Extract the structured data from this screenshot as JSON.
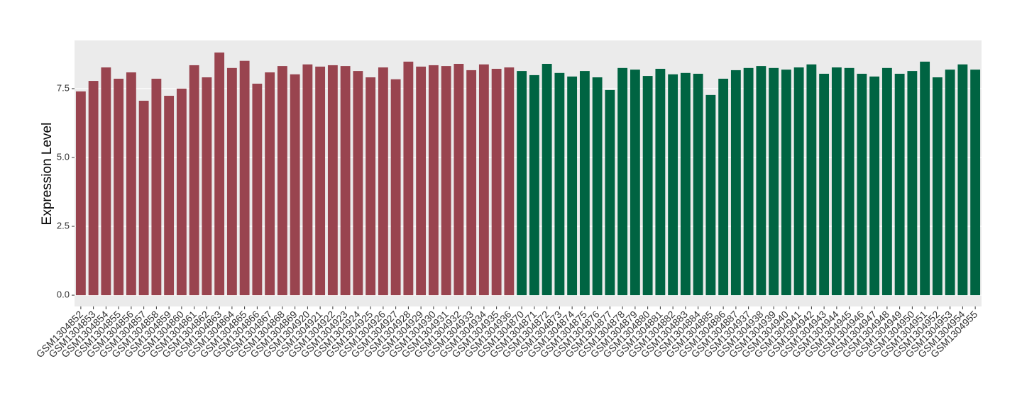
{
  "chart_data": {
    "type": "bar",
    "y_label": "Expression Level",
    "categories": [
      "GSM1304852",
      "GSM1304853",
      "GSM1304854",
      "GSM1304855",
      "GSM1304856",
      "GSM1304857",
      "GSM1304858",
      "GSM1304859",
      "GSM1304860",
      "GSM1304861",
      "GSM1304862",
      "GSM1304863",
      "GSM1304864",
      "GSM1304865",
      "GSM1304866",
      "GSM1304867",
      "GSM1304868",
      "GSM1304869",
      "GSM1304920",
      "GSM1304921",
      "GSM1304922",
      "GSM1304923",
      "GSM1304924",
      "GSM1304925",
      "GSM1304926",
      "GSM1304927",
      "GSM1304928",
      "GSM1304929",
      "GSM1304930",
      "GSM1304931",
      "GSM1304932",
      "GSM1304933",
      "GSM1304934",
      "GSM1304935",
      "GSM1304936",
      "GSM1304870",
      "GSM1304871",
      "GSM1304872",
      "GSM1304873",
      "GSM1304874",
      "GSM1304875",
      "GSM1304876",
      "GSM1304877",
      "GSM1304878",
      "GSM1304879",
      "GSM1304880",
      "GSM1304881",
      "GSM1304882",
      "GSM1304883",
      "GSM1304884",
      "GSM1304885",
      "GSM1304886",
      "GSM1304887",
      "GSM1304937",
      "GSM1304938",
      "GSM1304939",
      "GSM1304940",
      "GSM1304941",
      "GSM1304942",
      "GSM1304943",
      "GSM1304944",
      "GSM1304945",
      "GSM1304946",
      "GSM1304947",
      "GSM1304948",
      "GSM1304949",
      "GSM1304950",
      "GSM1304951",
      "GSM1304952",
      "GSM1304953",
      "GSM1304954",
      "GSM1304955"
    ],
    "series": [
      {
        "color": "#99444f",
        "values": [
          7.4,
          7.78,
          8.27,
          7.86,
          8.09,
          7.06,
          7.86,
          7.24,
          7.5,
          8.35,
          7.91,
          8.81,
          8.25,
          8.51,
          7.68,
          8.09,
          8.32,
          8.02,
          8.38,
          8.3,
          8.35,
          8.32,
          8.14,
          7.91,
          8.27,
          7.84,
          8.48,
          8.3,
          8.35,
          8.32,
          8.4,
          8.17,
          8.38,
          8.22,
          8.27,
          null,
          null,
          null,
          null,
          null,
          null,
          null,
          null,
          null,
          null,
          null,
          null,
          null,
          null,
          null,
          null,
          null,
          null,
          null,
          null,
          null,
          null,
          null,
          null,
          null,
          null,
          null,
          null,
          null,
          null,
          null,
          null,
          null,
          null,
          null,
          null,
          null
        ]
      },
      {
        "color": "#006442",
        "values": [
          null,
          null,
          null,
          null,
          null,
          null,
          null,
          null,
          null,
          null,
          null,
          null,
          null,
          null,
          null,
          null,
          null,
          null,
          null,
          null,
          null,
          null,
          null,
          null,
          null,
          null,
          null,
          null,
          null,
          null,
          null,
          null,
          null,
          null,
          null,
          8.14,
          7.99,
          8.4,
          8.07,
          7.94,
          8.14,
          7.91,
          7.45,
          8.25,
          8.19,
          7.96,
          8.22,
          8.02,
          8.07,
          8.04,
          7.27,
          7.86,
          8.17,
          8.25,
          8.32,
          8.25,
          8.19,
          8.27,
          8.38,
          8.04,
          8.27,
          8.25,
          8.04,
          7.94,
          8.25,
          8.04,
          8.14,
          8.48,
          7.91,
          8.19,
          8.38,
          8.19
        ]
      }
    ],
    "ylim": [
      -0.41,
      9.25
    ],
    "yticks": [
      {
        "value": 0,
        "label": "0.0"
      },
      {
        "value": 2.5,
        "label": "2.5"
      },
      {
        "value": 5,
        "label": "5.0"
      },
      {
        "value": 7.5,
        "label": "7.5"
      }
    ],
    "grid": true
  }
}
